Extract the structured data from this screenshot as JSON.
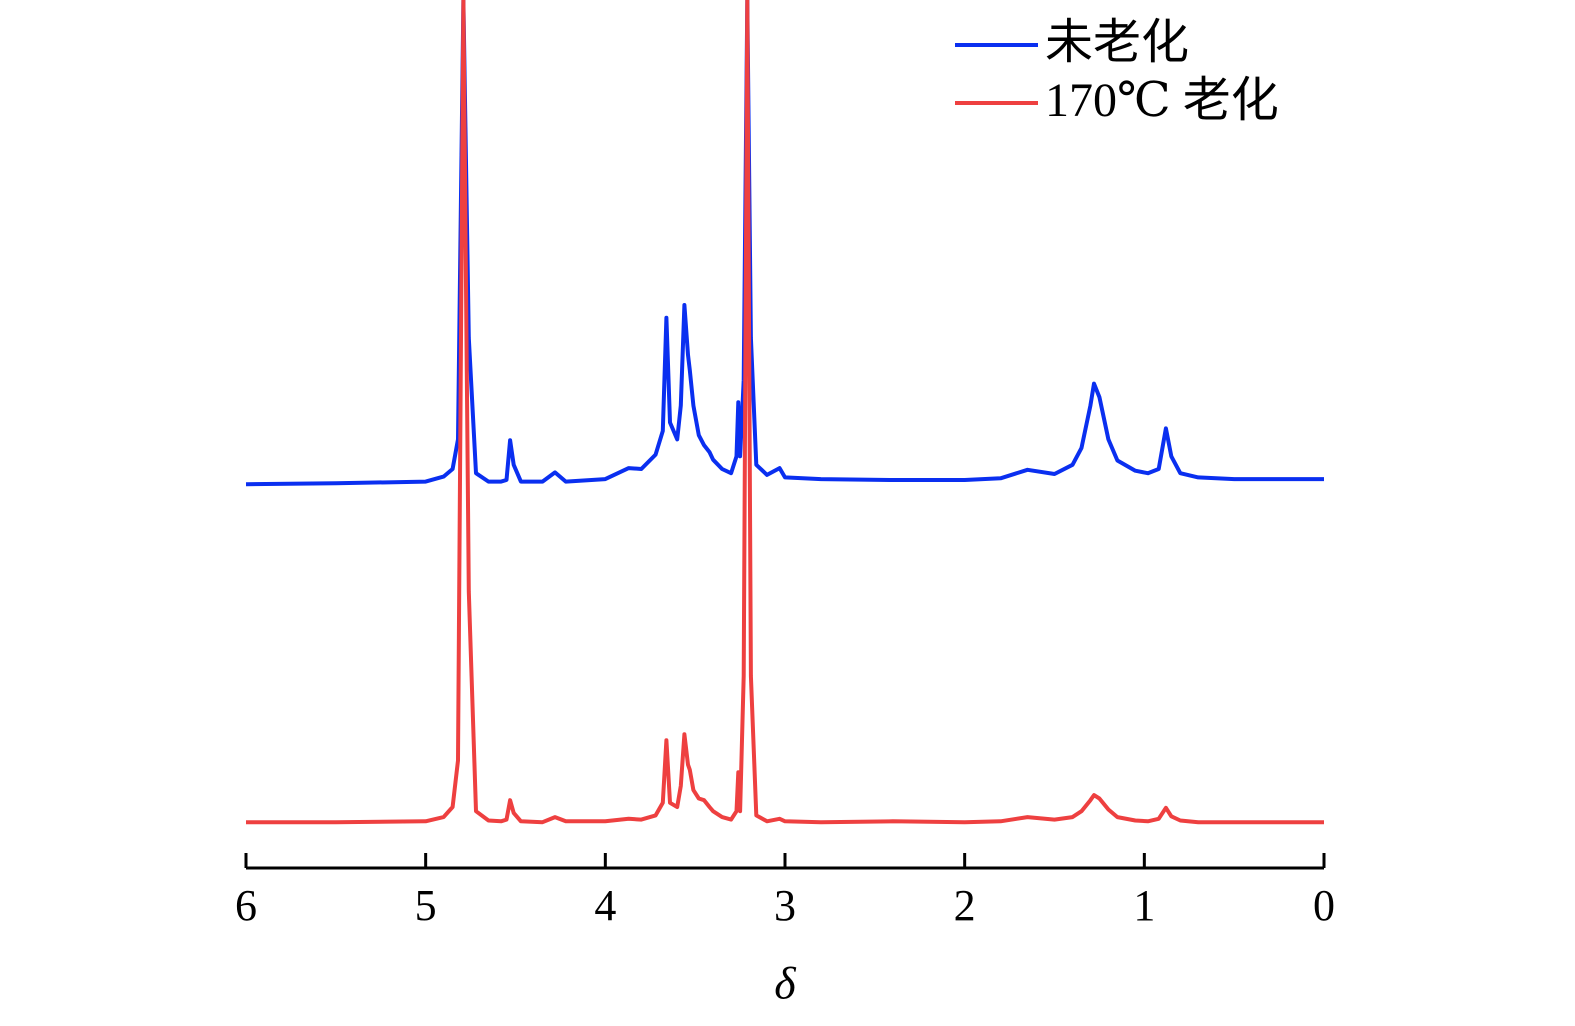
{
  "chart_data": {
    "type": "line",
    "xlabel": "δ",
    "x": [
      6,
      5.5,
      5,
      4.9,
      4.85,
      4.82,
      4.79,
      4.76,
      4.72,
      4.65,
      4.58,
      4.55,
      4.53,
      4.51,
      4.47,
      4.35,
      4.28,
      4.22,
      4.0,
      3.87,
      3.8,
      3.72,
      3.68,
      3.66,
      3.64,
      3.6,
      3.58,
      3.56,
      3.54,
      3.53,
      3.51,
      3.48,
      3.45,
      3.42,
      3.4,
      3.35,
      3.3,
      3.27,
      3.26,
      3.25,
      3.23,
      3.21,
      3.19,
      3.16,
      3.1,
      3.03,
      3.0,
      2.8,
      2.4,
      2.0,
      1.8,
      1.65,
      1.5,
      1.4,
      1.35,
      1.3,
      1.28,
      1.25,
      1.2,
      1.15,
      1.05,
      0.98,
      0.92,
      0.88,
      0.85,
      0.8,
      0.7,
      0.5,
      0.2,
      0
    ],
    "series": [
      {
        "name": "未老化",
        "color": "#0a2ff0",
        "values": [
          42.7,
          42.8,
          43.0,
          43.6,
          44.5,
          48,
          100,
          60,
          44,
          43,
          43,
          43.2,
          47.9,
          45,
          43,
          43,
          44.1,
          43,
          43.3,
          44.6,
          44.5,
          46.2,
          49,
          62.4,
          50,
          48,
          52,
          63.9,
          58,
          56.2,
          52,
          48.5,
          47.3,
          46.5,
          45.6,
          44.5,
          44,
          46,
          52.4,
          46,
          55,
          100,
          60,
          45,
          43.8,
          44.6,
          43.5,
          43.3,
          43.2,
          43.2,
          43.4,
          44.4,
          43.9,
          45,
          47,
          52,
          54.6,
          53,
          48,
          45.5,
          44.3,
          44,
          44.5,
          49.3,
          46,
          44,
          43.5,
          43.3,
          43.3,
          43.3
        ]
      },
      {
        "name": "170℃ 老化",
        "color": "#ee4040",
        "values": [
          2.7,
          2.7,
          2.8,
          3.3,
          4.5,
          10,
          100,
          30,
          4,
          2.9,
          2.8,
          3,
          5.3,
          3.8,
          2.8,
          2.7,
          3.3,
          2.8,
          2.8,
          3.1,
          3,
          3.5,
          5,
          12.4,
          5,
          4.5,
          7,
          13.1,
          9.5,
          8.9,
          6.5,
          5.5,
          5.3,
          4.5,
          4,
          3.3,
          3,
          4,
          8.6,
          4,
          20,
          100,
          20,
          3.5,
          2.8,
          3.1,
          2.8,
          2.7,
          2.8,
          2.7,
          2.8,
          3.3,
          3,
          3.3,
          4,
          5.3,
          5.9,
          5.5,
          4.2,
          3.3,
          2.9,
          2.8,
          3.1,
          4.4,
          3.4,
          2.9,
          2.7,
          2.7,
          2.7,
          2.7
        ]
      }
    ],
    "xlim": [
      6,
      0
    ],
    "xticks": [
      6,
      5,
      4,
      3,
      2,
      1,
      0
    ],
    "ylim": [
      0,
      100
    ],
    "legend": "upper right"
  }
}
